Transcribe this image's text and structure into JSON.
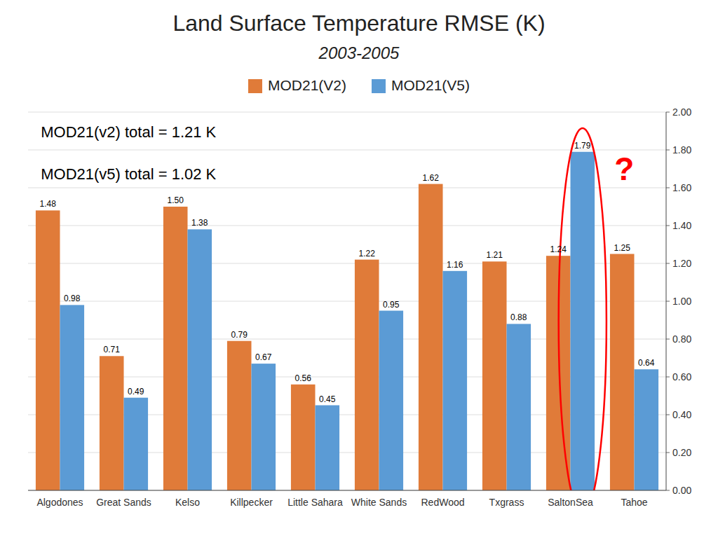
{
  "chart_data": {
    "type": "bar",
    "title": "Land Surface Temperature RMSE (K)",
    "subtitle": "2003-2005",
    "categories": [
      "Algodones",
      "Great Sands",
      "Kelso",
      "Killpecker",
      "Little Sahara",
      "White Sands",
      "RedWood",
      "Txgrass",
      "SaltonSea",
      "Tahoe"
    ],
    "series": [
      {
        "name": "MOD21(V2)",
        "color": "#E07B39",
        "values": [
          1.48,
          0.71,
          1.5,
          0.79,
          0.56,
          1.22,
          1.62,
          1.21,
          1.24,
          1.25
        ],
        "value_labels": [
          "1.48",
          "0.71",
          "1.50",
          "0.79",
          "0.56",
          "1.22",
          "1.62",
          "1.21",
          "1.24",
          "1.25"
        ]
      },
      {
        "name": "MOD21(V5)",
        "color": "#5B9BD5",
        "values": [
          0.98,
          0.49,
          1.38,
          0.67,
          0.45,
          0.95,
          1.16,
          0.88,
          1.79,
          0.64
        ],
        "value_labels": [
          "0.98",
          "0.49",
          "1.38",
          "0.67",
          "0.45",
          "0.95",
          "1.16",
          "0.88",
          "1.79",
          "0.64"
        ]
      }
    ],
    "annotations": [
      "MOD21(v2) total = 1.21 K",
      "MOD21(v5) total = 1.02 K",
      {
        "text": "?",
        "color": "#FF0000",
        "category": "SaltonSea",
        "series": "MOD21(V5)"
      }
    ],
    "ylim": [
      0.0,
      2.0
    ],
    "yticks": [
      {
        "value": 0.0,
        "label": "0.00"
      },
      {
        "value": 0.2,
        "label": "0.20"
      },
      {
        "value": 0.4,
        "label": "0.40"
      },
      {
        "value": 0.6,
        "label": "0.60"
      },
      {
        "value": 0.8,
        "label": "0.80"
      },
      {
        "value": 1.0,
        "label": "1.00"
      },
      {
        "value": 1.2,
        "label": "1.20"
      },
      {
        "value": 1.4,
        "label": "1.40"
      },
      {
        "value": 1.6,
        "label": "1.60"
      },
      {
        "value": 1.8,
        "label": "1.80"
      },
      {
        "value": 2.0,
        "label": "2.00"
      }
    ],
    "grid": true,
    "legend": "top",
    "data_labels": true
  }
}
